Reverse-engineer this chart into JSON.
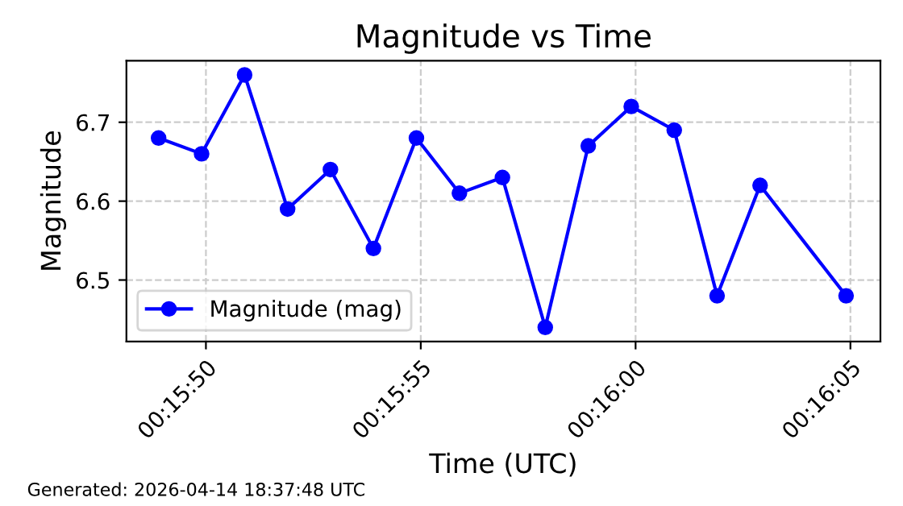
{
  "chart_data": {
    "type": "line",
    "title": "Magnitude vs Time",
    "xlabel": "Time (UTC)",
    "ylabel": "Magnitude",
    "x": [
      0.263583,
      0.263861,
      0.264139,
      0.264417,
      0.264694,
      0.264972,
      0.26525,
      0.265528,
      0.265806,
      0.266083,
      0.266361,
      0.266639,
      0.266917,
      0.267194,
      0.267472,
      0.268028
    ],
    "series": [
      {
        "name": "Magnitude (mag)",
        "color": "#0000ff",
        "values": [
          6.68,
          6.66,
          6.76,
          6.59,
          6.64,
          6.54,
          6.68,
          6.61,
          6.63,
          6.44,
          6.67,
          6.72,
          6.69,
          6.48,
          6.62,
          6.48
        ]
      }
    ],
    "xlim": [
      0.263375,
      0.26825
    ],
    "xticks": [
      {
        "value": 0.263889,
        "label": "00:15:50"
      },
      {
        "value": 0.265278,
        "label": "00:15:55"
      },
      {
        "value": 0.266667,
        "label": "00:16:00"
      },
      {
        "value": 0.268056,
        "label": "00:16:05"
      }
    ],
    "ylim": [
      6.422,
      6.778
    ],
    "yticks": [
      6.5,
      6.6,
      6.7
    ],
    "grid": true,
    "legend": "bottom left",
    "marker": "circle",
    "line_style": "solid",
    "annotations": [
      "Generated: 2026-04-14 18:37:48 UTC"
    ]
  }
}
